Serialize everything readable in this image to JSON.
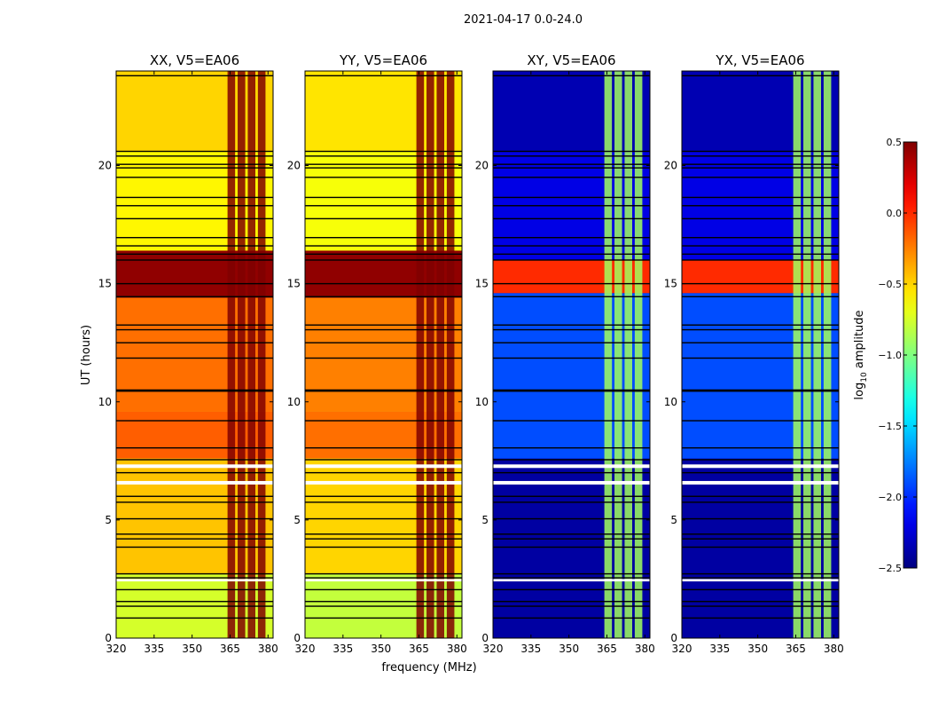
{
  "figure_title": "2021-04-17 0.0-24.0",
  "chart_data": {
    "type": "heatmap",
    "title": "2021-04-17 0.0-24.0",
    "xlabel": "frequency (MHz)",
    "ylabel": "UT (hours)",
    "xlim": [
      320,
      382
    ],
    "ylim": [
      0,
      24
    ],
    "x_ticks": [
      320,
      335,
      350,
      365,
      380
    ],
    "x_tick_labels": [
      "320",
      "335",
      "350",
      "365",
      "380"
    ],
    "y_ticks": [
      0,
      5,
      10,
      15,
      20
    ],
    "y_tick_labels": [
      "0",
      "5",
      "10",
      "15",
      "20"
    ],
    "colormap": "jet",
    "colorbar": {
      "label_prefix": "log",
      "label_subscript": "10",
      "label_suffix": " amplitude",
      "range": [
        -2.5,
        0.5
      ],
      "ticks": [
        0.5,
        0.0,
        -0.5,
        -1.0,
        -1.5,
        -2.0,
        -2.5
      ],
      "tick_labels": [
        "0.5",
        "0.0",
        "−0.5",
        "−1.0",
        "−1.5",
        "−2.0",
        "−2.5"
      ]
    },
    "hatched_band_MHz": [
      [
        364,
        367
      ],
      [
        368,
        371
      ],
      [
        372,
        375
      ],
      [
        376,
        379
      ]
    ],
    "panels": [
      {
        "title": "XX, V5=EA06",
        "base_value": -0.7,
        "rows": [
          {
            "from": 0.0,
            "to": 2.7,
            "value": -0.75
          },
          {
            "from": 2.7,
            "to": 7.6,
            "value": -0.45
          },
          {
            "from": 7.6,
            "to": 9.6,
            "value": -0.15
          },
          {
            "from": 9.6,
            "to": 14.4,
            "value": -0.2
          },
          {
            "from": 14.4,
            "to": 16.4,
            "value": 0.45
          },
          {
            "from": 16.4,
            "to": 20.6,
            "value": -0.6
          },
          {
            "from": 20.6,
            "to": 24.0,
            "value": -0.5
          }
        ],
        "band_value": 0.5
      },
      {
        "title": "YY, V5=EA06",
        "base_value": -0.75,
        "rows": [
          {
            "from": 0.0,
            "to": 2.7,
            "value": -0.8
          },
          {
            "from": 2.7,
            "to": 7.6,
            "value": -0.5
          },
          {
            "from": 7.6,
            "to": 9.6,
            "value": -0.2
          },
          {
            "from": 9.6,
            "to": 14.4,
            "value": -0.25
          },
          {
            "from": 14.4,
            "to": 16.4,
            "value": 0.45
          },
          {
            "from": 16.4,
            "to": 20.6,
            "value": -0.65
          },
          {
            "from": 20.6,
            "to": 24.0,
            "value": -0.55
          }
        ],
        "band_value": 0.5
      },
      {
        "title": "XY, V5=EA06",
        "base_value": -2.3,
        "rows": [
          {
            "from": 0.0,
            "to": 7.6,
            "value": -2.4
          },
          {
            "from": 7.6,
            "to": 14.6,
            "value": -1.9
          },
          {
            "from": 14.6,
            "to": 16.0,
            "value": 0.0
          },
          {
            "from": 16.0,
            "to": 20.6,
            "value": -2.2
          },
          {
            "from": 20.6,
            "to": 24.0,
            "value": -2.35
          }
        ],
        "band_value": -0.9
      },
      {
        "title": "YX, V5=EA06",
        "base_value": -2.3,
        "rows": [
          {
            "from": 0.0,
            "to": 7.6,
            "value": -2.4
          },
          {
            "from": 7.6,
            "to": 14.6,
            "value": -1.9
          },
          {
            "from": 14.6,
            "to": 16.0,
            "value": 0.0
          },
          {
            "from": 16.0,
            "to": 20.6,
            "value": -2.2
          },
          {
            "from": 20.6,
            "to": 24.0,
            "value": -2.35
          }
        ],
        "band_value": -0.9
      }
    ],
    "flagged_hours": [
      0.85,
      1.35,
      1.55,
      2.05,
      2.55,
      2.72,
      3.85,
      4.2,
      4.4,
      5.05,
      5.75,
      6.0,
      7.0,
      7.55,
      8.05,
      9.2,
      10.45,
      10.5,
      11.85,
      12.5,
      13.05,
      13.25,
      14.45,
      15.0,
      16.0,
      16.25,
      16.6,
      16.95,
      17.75,
      18.3,
      18.65,
      19.5,
      19.9,
      20.05,
      20.4,
      20.6,
      23.8
    ],
    "blank_hours": [
      [
        6.5,
        6.65
      ],
      [
        7.2,
        7.35
      ],
      [
        2.4,
        2.5
      ]
    ]
  }
}
